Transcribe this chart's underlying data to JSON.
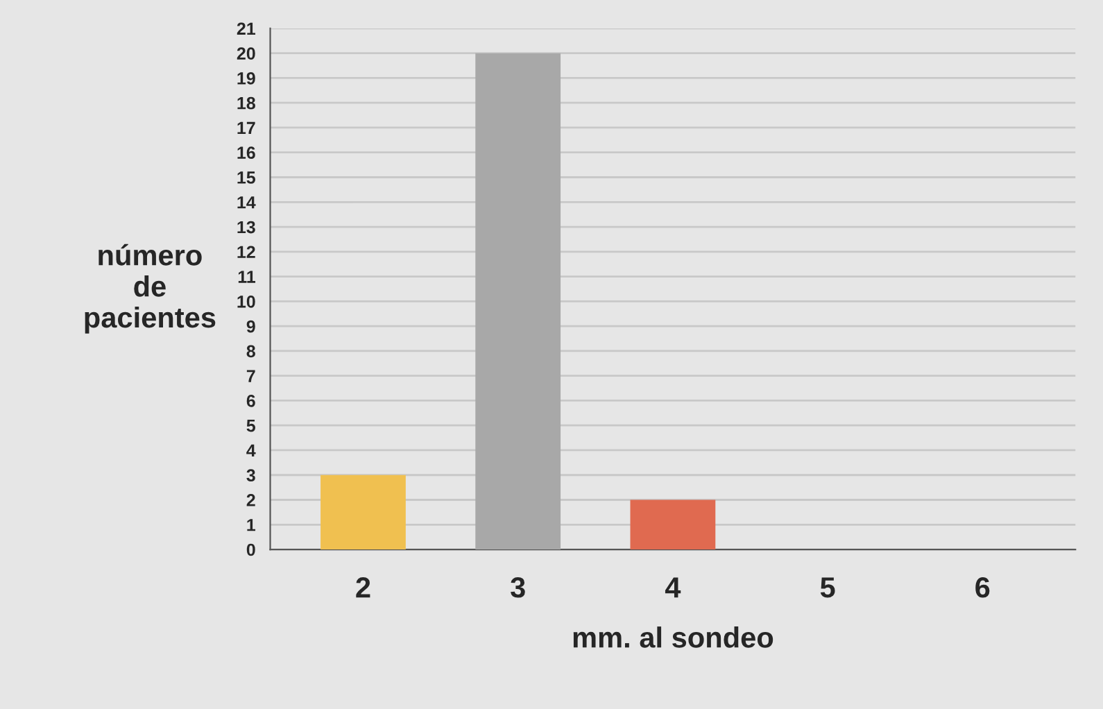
{
  "chart_data": {
    "type": "bar",
    "xlabel": "mm. al sondeo",
    "ylabel": "número\nde\npacientes",
    "categories": [
      "2",
      "3",
      "4",
      "5",
      "6"
    ],
    "values": [
      3,
      20,
      2,
      0,
      0
    ],
    "colors": [
      "#f0c050",
      "#a8a8a8",
      "#e06a50",
      "#c0c0c0",
      "#c0c0c0"
    ],
    "ylim": [
      0,
      21
    ],
    "yticks": [
      0,
      1,
      2,
      3,
      4,
      5,
      6,
      7,
      8,
      9,
      10,
      11,
      12,
      13,
      14,
      15,
      16,
      17,
      18,
      19,
      20,
      21
    ],
    "grid": "y",
    "legend": false
  }
}
